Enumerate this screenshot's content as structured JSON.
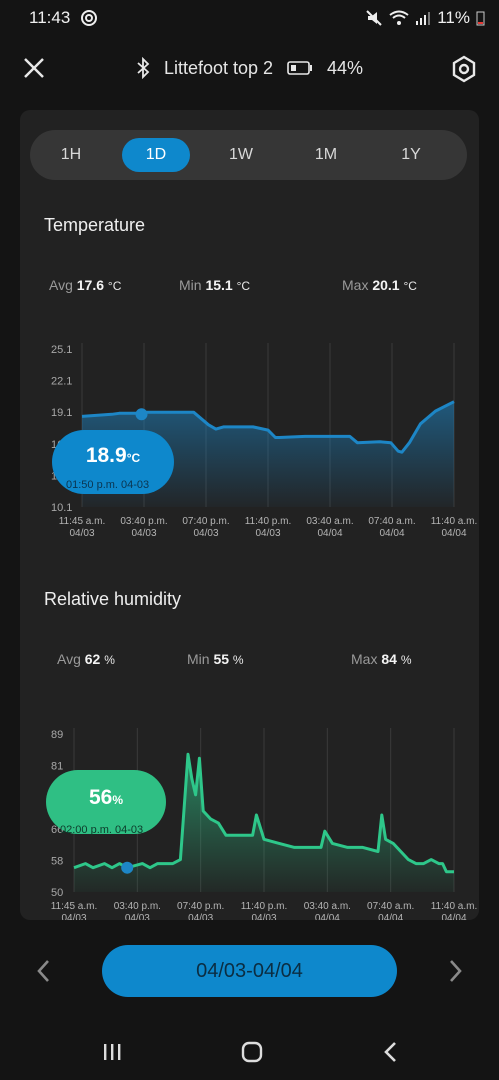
{
  "status_bar": {
    "time": "11:43",
    "battery_text": "11%"
  },
  "header": {
    "device_name": "Littefoot top 2",
    "battery_level": "44%"
  },
  "ranges": [
    {
      "label": "1H",
      "active": false
    },
    {
      "label": "1D",
      "active": true
    },
    {
      "label": "1W",
      "active": false
    },
    {
      "label": "1M",
      "active": false
    },
    {
      "label": "1Y",
      "active": false
    }
  ],
  "temperature": {
    "title": "Temperature",
    "avg_label": "Avg",
    "avg_value": "17.6",
    "avg_unit": "°C",
    "min_label": "Min",
    "min_value": "15.1",
    "min_unit": "°C",
    "max_label": "Max",
    "max_value": "20.1",
    "max_unit": "°C",
    "tooltip_value": "18.9",
    "tooltip_unit": "°C",
    "tooltip_time": "01:50 p.m. 04-03"
  },
  "humidity": {
    "title": "Relative humidity",
    "avg_label": "Avg",
    "avg_value": "62",
    "avg_unit": "%",
    "min_label": "Min",
    "min_value": "55",
    "min_unit": "%",
    "max_label": "Max",
    "max_value": "84",
    "max_unit": "%",
    "tooltip_value": "56",
    "tooltip_unit": "%",
    "tooltip_time": "02:00 p.m. 04-03"
  },
  "date_range": "04/03-04/04",
  "colors": {
    "accent": "#0e88cc",
    "temp_line": "#1d86c6",
    "humidity_line": "#2ec78a",
    "humidity_tooltip": "#2fbf84"
  },
  "chart_data": [
    {
      "type": "area",
      "title": "Temperature",
      "ylim": [
        10.1,
        25.1
      ],
      "yticks": [
        "25.1",
        "22.1",
        "19.1",
        "16.1",
        "13.1",
        "10.1"
      ],
      "xticks": [
        [
          "11:45 a.m.",
          "04/03"
        ],
        [
          "03:40 p.m.",
          "04/03"
        ],
        [
          "07:40 p.m.",
          "04/03"
        ],
        [
          "11:40 p.m.",
          "04/03"
        ],
        [
          "03:40 a.m.",
          "04/04"
        ],
        [
          "07:40 a.m.",
          "04/04"
        ],
        [
          "11:40 a.m.",
          "04/04"
        ]
      ],
      "x": [
        0,
        0.08,
        0.1,
        0.16,
        0.17,
        0.3,
        0.34,
        0.36,
        0.38,
        0.46,
        0.5,
        0.52,
        0.53,
        0.6,
        0.62,
        0.64,
        0.72,
        0.74,
        0.8,
        0.83,
        0.85,
        0.86,
        0.88,
        0.91,
        0.95,
        1.0
      ],
      "values": [
        18.7,
        18.9,
        19.0,
        19.0,
        19.1,
        19.1,
        17.9,
        17.5,
        17.7,
        17.7,
        17.4,
        16.7,
        16.7,
        16.8,
        16.8,
        16.8,
        16.8,
        16.2,
        16.3,
        16.2,
        15.4,
        15.3,
        16.2,
        18.0,
        19.2,
        20.1
      ],
      "marker_x": 0.16,
      "marker_y": 18.9
    },
    {
      "type": "area",
      "title": "Relative humidity",
      "ylim": [
        50,
        89
      ],
      "yticks": [
        "89",
        "81",
        "73",
        "66",
        "58",
        "50"
      ],
      "xticks": [
        [
          "11:45 a.m.",
          "04/03"
        ],
        [
          "03:40 p.m.",
          "04/03"
        ],
        [
          "07:40 p.m.",
          "04/03"
        ],
        [
          "11:40 p.m.",
          "04/03"
        ],
        [
          "03:40 a.m.",
          "04/04"
        ],
        [
          "07:40 a.m.",
          "04/04"
        ],
        [
          "11:40 a.m.",
          "04/04"
        ]
      ],
      "x": [
        0,
        0.03,
        0.05,
        0.08,
        0.1,
        0.12,
        0.14,
        0.18,
        0.2,
        0.22,
        0.24,
        0.26,
        0.28,
        0.3,
        0.31,
        0.32,
        0.33,
        0.34,
        0.36,
        0.38,
        0.4,
        0.42,
        0.44,
        0.46,
        0.47,
        0.48,
        0.5,
        0.54,
        0.58,
        0.62,
        0.65,
        0.66,
        0.68,
        0.72,
        0.76,
        0.8,
        0.81,
        0.82,
        0.84,
        0.86,
        0.88,
        0.9,
        0.92,
        0.94,
        0.96,
        0.97,
        0.98,
        1.0
      ],
      "values": [
        56,
        57,
        56,
        57,
        56,
        57,
        56,
        57,
        56,
        57,
        57,
        57,
        58,
        84,
        78,
        74,
        83,
        70,
        68,
        67,
        64,
        64,
        64,
        64,
        64,
        69,
        63,
        62,
        61,
        61,
        61,
        65,
        62,
        61,
        61,
        60,
        69,
        63,
        62,
        60,
        58,
        57,
        57,
        58,
        57,
        57,
        55,
        55
      ],
      "marker_x": 0.14,
      "marker_y": 56
    }
  ]
}
